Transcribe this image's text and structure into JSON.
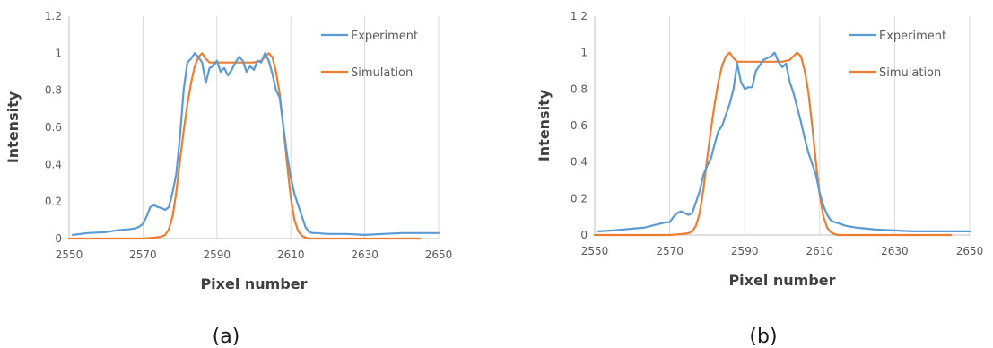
{
  "colors": {
    "experiment": "#5B9BD5",
    "simulation": "#ED7D31",
    "grid": "#D9D9D9",
    "axis": "#BFBFBF"
  },
  "chart_data": [
    {
      "type": "line",
      "caption": "(a)",
      "xlabel": "Pixel number",
      "ylabel": "Intensity",
      "xlim": [
        2550,
        2650
      ],
      "ylim": [
        0,
        1.2
      ],
      "xticks": [
        2550,
        2570,
        2590,
        2610,
        2630,
        2650
      ],
      "yticks": [
        0,
        0.2,
        0.4,
        0.6,
        0.8,
        1,
        1.2
      ],
      "grid": "vertical",
      "legend": "right",
      "series": [
        {
          "name": "Experiment",
          "x": [
            2551,
            2555,
            2560,
            2563,
            2566,
            2568,
            2569,
            2570,
            2571,
            2572,
            2573,
            2574,
            2575,
            2576,
            2577,
            2578,
            2579,
            2580,
            2581,
            2582,
            2583,
            2584,
            2585,
            2586,
            2587,
            2588,
            2589,
            2590,
            2591,
            2592,
            2593,
            2594,
            2595,
            2596,
            2597,
            2598,
            2599,
            2600,
            2601,
            2602,
            2603,
            2604,
            2605,
            2606,
            2607,
            2608,
            2609,
            2610,
            2611,
            2612,
            2613,
            2614,
            2615,
            2616,
            2617,
            2620,
            2625,
            2630,
            2635,
            2640,
            2645,
            2650
          ],
          "y": [
            0.02,
            0.03,
            0.035,
            0.045,
            0.05,
            0.055,
            0.065,
            0.08,
            0.12,
            0.17,
            0.18,
            0.17,
            0.165,
            0.155,
            0.17,
            0.25,
            0.35,
            0.55,
            0.8,
            0.95,
            0.97,
            1.0,
            0.98,
            0.95,
            0.84,
            0.92,
            0.93,
            0.96,
            0.9,
            0.92,
            0.88,
            0.91,
            0.95,
            0.98,
            0.96,
            0.9,
            0.93,
            0.91,
            0.96,
            0.95,
            1.0,
            0.96,
            0.89,
            0.8,
            0.76,
            0.6,
            0.45,
            0.33,
            0.24,
            0.18,
            0.12,
            0.06,
            0.035,
            0.03,
            0.03,
            0.025,
            0.025,
            0.02,
            0.025,
            0.03,
            0.03,
            0.03
          ]
        },
        {
          "name": "Simulation",
          "x": [
            2550,
            2555,
            2560,
            2565,
            2570,
            2573,
            2575,
            2576,
            2577,
            2578,
            2579,
            2580,
            2581,
            2582,
            2583,
            2584,
            2585,
            2586,
            2587,
            2588,
            2589,
            2590,
            2592,
            2594,
            2596,
            2598,
            2600,
            2602,
            2603,
            2604,
            2605,
            2606,
            2607,
            2608,
            2609,
            2610,
            2611,
            2612,
            2613,
            2614,
            2615,
            2616,
            2618,
            2620,
            2625,
            2630,
            2635,
            2640,
            2645
          ],
          "y": [
            0,
            0,
            0,
            0,
            0,
            0.005,
            0.01,
            0.02,
            0.05,
            0.12,
            0.25,
            0.42,
            0.58,
            0.72,
            0.84,
            0.93,
            0.98,
            1.0,
            0.97,
            0.95,
            0.95,
            0.95,
            0.95,
            0.95,
            0.95,
            0.95,
            0.95,
            0.96,
            0.98,
            1.0,
            0.98,
            0.9,
            0.78,
            0.6,
            0.4,
            0.22,
            0.1,
            0.04,
            0.015,
            0.005,
            0,
            0,
            0,
            0,
            0,
            0,
            0,
            0,
            0
          ]
        }
      ]
    },
    {
      "type": "line",
      "caption": "(b)",
      "xlabel": "Pixel number",
      "ylabel": "Intensity",
      "xlim": [
        2550,
        2650
      ],
      "ylim": [
        0,
        1.2
      ],
      "xticks": [
        2550,
        2570,
        2590,
        2610,
        2630,
        2650
      ],
      "yticks": [
        0,
        0.2,
        0.4,
        0.6,
        0.8,
        1,
        1.2
      ],
      "grid": "vertical",
      "legend": "right",
      "series": [
        {
          "name": "Experiment",
          "x": [
            2551,
            2555,
            2560,
            2563,
            2565,
            2567,
            2569,
            2570,
            2571,
            2572,
            2573,
            2574,
            2575,
            2576,
            2577,
            2578,
            2579,
            2580,
            2581,
            2582,
            2583,
            2584,
            2585,
            2586,
            2587,
            2588,
            2589,
            2590,
            2591,
            2592,
            2593,
            2594,
            2595,
            2596,
            2597,
            2598,
            2599,
            2600,
            2601,
            2602,
            2603,
            2604,
            2605,
            2606,
            2607,
            2608,
            2609,
            2610,
            2611,
            2612,
            2613,
            2614,
            2615,
            2617,
            2620,
            2625,
            2630,
            2635,
            2640,
            2645,
            2650
          ],
          "y": [
            0.02,
            0.025,
            0.035,
            0.04,
            0.05,
            0.06,
            0.07,
            0.07,
            0.1,
            0.12,
            0.13,
            0.12,
            0.11,
            0.12,
            0.18,
            0.24,
            0.33,
            0.38,
            0.42,
            0.5,
            0.57,
            0.6,
            0.66,
            0.72,
            0.8,
            0.94,
            0.84,
            0.8,
            0.81,
            0.81,
            0.9,
            0.93,
            0.96,
            0.97,
            0.98,
            1.0,
            0.95,
            0.92,
            0.94,
            0.84,
            0.78,
            0.7,
            0.62,
            0.53,
            0.45,
            0.39,
            0.33,
            0.23,
            0.16,
            0.11,
            0.08,
            0.07,
            0.065,
            0.05,
            0.04,
            0.03,
            0.025,
            0.02,
            0.02,
            0.02,
            0.02
          ]
        },
        {
          "name": "Simulation",
          "x": [
            2550,
            2555,
            2560,
            2565,
            2570,
            2573,
            2575,
            2576,
            2577,
            2578,
            2579,
            2580,
            2581,
            2582,
            2583,
            2584,
            2585,
            2586,
            2587,
            2588,
            2589,
            2590,
            2592,
            2594,
            2596,
            2598,
            2600,
            2602,
            2603,
            2604,
            2605,
            2606,
            2607,
            2608,
            2609,
            2610,
            2611,
            2612,
            2613,
            2614,
            2615,
            2616,
            2618,
            2620,
            2625,
            2630,
            2635,
            2640,
            2645
          ],
          "y": [
            0,
            0,
            0,
            0,
            0,
            0.005,
            0.01,
            0.02,
            0.05,
            0.12,
            0.25,
            0.42,
            0.58,
            0.72,
            0.84,
            0.93,
            0.98,
            1.0,
            0.97,
            0.95,
            0.95,
            0.95,
            0.95,
            0.95,
            0.95,
            0.95,
            0.95,
            0.96,
            0.98,
            1.0,
            0.98,
            0.9,
            0.78,
            0.6,
            0.4,
            0.22,
            0.1,
            0.04,
            0.015,
            0.005,
            0,
            0,
            0,
            0,
            0,
            0,
            0,
            0,
            0
          ]
        }
      ]
    }
  ]
}
